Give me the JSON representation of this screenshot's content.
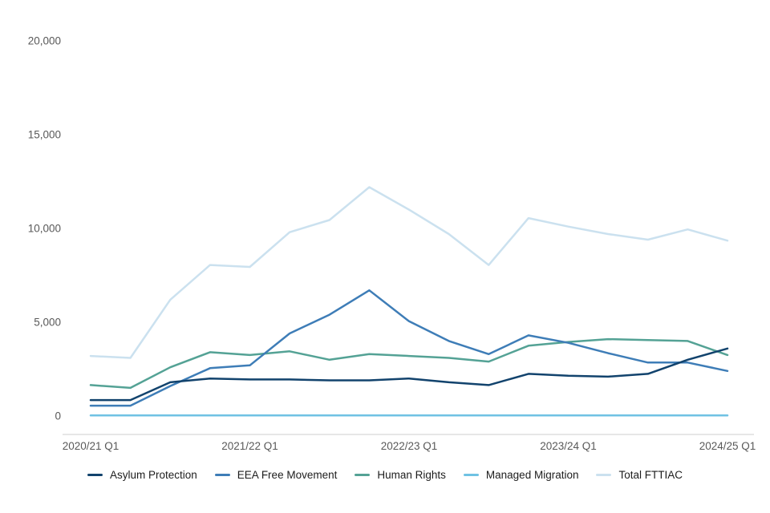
{
  "chart_data": {
    "type": "line",
    "title": "",
    "xlabel": "",
    "ylabel": "",
    "grid": false,
    "legend_position": "bottom",
    "ylim": [
      0,
      20000
    ],
    "y_ticks": [
      {
        "value": 0,
        "label": "0"
      },
      {
        "value": 5000,
        "label": "5,000"
      },
      {
        "value": 10000,
        "label": "10,000"
      },
      {
        "value": 15000,
        "label": "15,000"
      },
      {
        "value": 20000,
        "label": "20,000"
      }
    ],
    "categories": [
      "2020/21 Q1",
      "2020/21 Q2",
      "2020/21 Q3",
      "2020/21 Q4",
      "2021/22 Q1",
      "2021/22 Q2",
      "2021/22 Q3",
      "2021/22 Q4",
      "2022/23 Q1",
      "2022/23 Q2",
      "2022/23 Q3",
      "2022/23 Q4",
      "2023/24 Q1",
      "2023/24 Q2",
      "2023/24 Q3",
      "2023/24 Q4",
      "2024/25 Q1"
    ],
    "x_ticks": [
      {
        "index": 0,
        "label": "2020/21 Q1"
      },
      {
        "index": 4,
        "label": "2021/22 Q1"
      },
      {
        "index": 8,
        "label": "2022/23 Q1"
      },
      {
        "index": 12,
        "label": "2023/24 Q1"
      },
      {
        "index": 16,
        "label": "2024/25 Q1"
      }
    ],
    "series": [
      {
        "name": "Total FTTIAC",
        "color": "#CBE1EF",
        "values": [
          3200,
          3100,
          6200,
          8050,
          7950,
          9800,
          10450,
          12200,
          11000,
          9700,
          8050,
          10550,
          10100,
          9700,
          9400,
          9950,
          9350
        ]
      },
      {
        "name": "Managed Migration",
        "color": "#6FC2E3",
        "values": [
          30,
          30,
          30,
          30,
          30,
          30,
          30,
          30,
          30,
          30,
          30,
          30,
          30,
          30,
          30,
          30,
          30
        ]
      },
      {
        "name": "Human Rights",
        "color": "#54A295",
        "values": [
          1650,
          1500,
          2600,
          3400,
          3250,
          3450,
          3000,
          3300,
          3200,
          3100,
          2900,
          3750,
          3950,
          4100,
          4050,
          4000,
          3250
        ]
      },
      {
        "name": "EEA Free Movement",
        "color": "#3E7DB7",
        "values": [
          550,
          550,
          1600,
          2550,
          2700,
          4400,
          5400,
          6700,
          5050,
          4000,
          3300,
          4300,
          3900,
          3350,
          2850,
          2850,
          2400
        ]
      },
      {
        "name": "Asylum Protection",
        "color": "#12436D",
        "values": [
          850,
          850,
          1800,
          2000,
          1950,
          1950,
          1900,
          1900,
          2000,
          1800,
          1650,
          2250,
          2150,
          2100,
          2250,
          3000,
          3600
        ]
      }
    ],
    "legend_order": [
      "Asylum Protection",
      "EEA Free Movement",
      "Human Rights",
      "Managed Migration",
      "Total FTTIAC"
    ],
    "axis_color": "#CCCCCC",
    "tick_text_color": "#595959",
    "legend_text_color": "#1D1D1D"
  }
}
